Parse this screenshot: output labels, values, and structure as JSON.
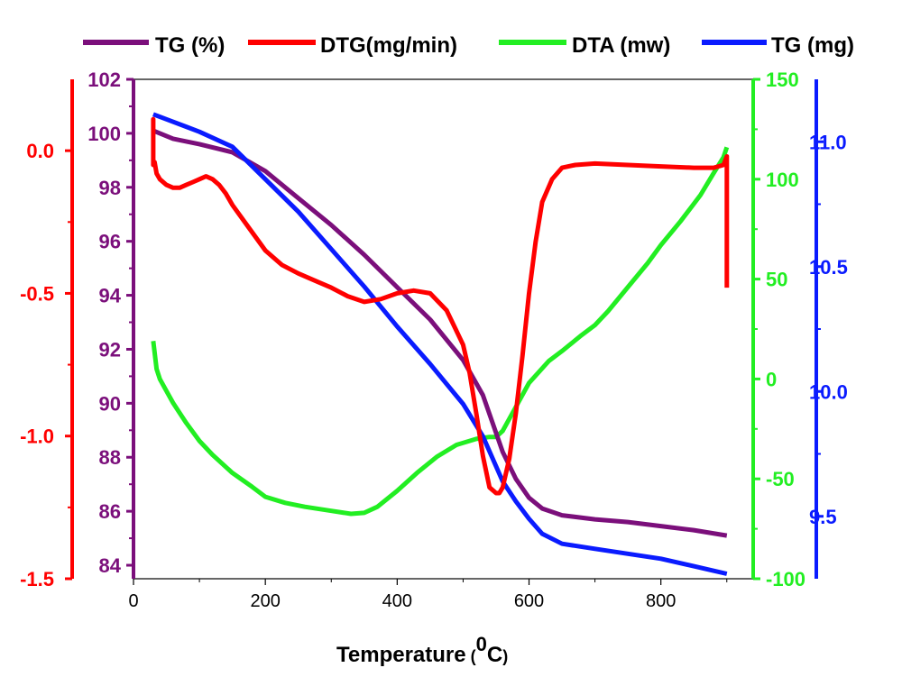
{
  "chart_data": {
    "type": "line",
    "xlabel": "Temperature",
    "xlabel_unit_sup": "0",
    "xlabel_unit_c": "C",
    "xlabel_paren_open": "(",
    "xlabel_paren_close": ")",
    "xlim": [
      0,
      940
    ],
    "xticks": [
      0,
      200,
      400,
      600,
      800
    ],
    "legend_position": "top",
    "axes": {
      "tg_pct": {
        "ylim": [
          83.5,
          102
        ],
        "ticks": [
          84,
          86,
          88,
          90,
          92,
          94,
          96,
          98,
          100,
          102
        ],
        "color": "#7b0f7b"
      },
      "dtg": {
        "ylim": [
          -1.5,
          0.25
        ],
        "ticks": [
          -1.5,
          -1.0,
          -0.5,
          0.0
        ],
        "tick_labels": [
          "-1.5",
          "-1.0",
          "-0.5",
          "0.0"
        ],
        "color": "#ff0000"
      },
      "dta": {
        "ylim": [
          -100,
          150
        ],
        "ticks": [
          -100,
          -50,
          0,
          50,
          100,
          150
        ],
        "color": "#22ee22"
      },
      "tg_mg": {
        "ylim": [
          9.25,
          11.25
        ],
        "ticks": [
          9.5,
          10.0,
          10.5,
          11.0
        ],
        "tick_labels": [
          "9.5",
          "10.0",
          "10.5",
          "11.0"
        ],
        "color": "#0a1bff"
      }
    },
    "series": [
      {
        "name": "TG (%)",
        "axis": "tg_pct",
        "color": "#7b0f7b",
        "x": [
          30,
          60,
          100,
          150,
          200,
          250,
          300,
          350,
          400,
          450,
          500,
          530,
          560,
          580,
          600,
          620,
          650,
          700,
          750,
          800,
          850,
          900
        ],
        "y": [
          100.1,
          99.8,
          99.6,
          99.3,
          98.6,
          97.6,
          96.6,
          95.5,
          94.3,
          93.1,
          91.6,
          90.3,
          88.2,
          87.2,
          86.5,
          86.1,
          85.85,
          85.7,
          85.6,
          85.45,
          85.3,
          85.1
        ]
      },
      {
        "name": "DTG(mg/min)",
        "axis": "dtg",
        "color": "#ff0000",
        "x": [
          30,
          30,
          30,
          32,
          35,
          40,
          50,
          60,
          70,
          80,
          90,
          100,
          110,
          120,
          130,
          140,
          150,
          175,
          200,
          225,
          250,
          280,
          300,
          325,
          350,
          375,
          400,
          425,
          450,
          475,
          500,
          510,
          520,
          530,
          540,
          550,
          555,
          560,
          570,
          580,
          590,
          600,
          610,
          620,
          635,
          650,
          670,
          700,
          750,
          800,
          850,
          880,
          895,
          900,
          900
        ],
        "y": [
          0.03,
          0.11,
          -0.05,
          -0.04,
          -0.08,
          -0.1,
          -0.12,
          -0.13,
          -0.13,
          -0.12,
          -0.11,
          -0.1,
          -0.09,
          -0.1,
          -0.12,
          -0.15,
          -0.19,
          -0.27,
          -0.35,
          -0.4,
          -0.43,
          -0.46,
          -0.48,
          -0.51,
          -0.53,
          -0.52,
          -0.5,
          -0.49,
          -0.5,
          -0.56,
          -0.68,
          -0.78,
          -0.92,
          -1.07,
          -1.18,
          -1.2,
          -1.2,
          -1.18,
          -1.08,
          -0.92,
          -0.72,
          -0.5,
          -0.32,
          -0.18,
          -0.1,
          -0.06,
          -0.05,
          -0.045,
          -0.05,
          -0.055,
          -0.06,
          -0.06,
          -0.05,
          -0.02,
          -0.48
        ]
      },
      {
        "name": "DTA (mw)",
        "axis": "dta",
        "color": "#22ee22",
        "x": [
          30,
          35,
          40,
          50,
          60,
          80,
          100,
          120,
          150,
          180,
          200,
          230,
          260,
          300,
          330,
          350,
          370,
          400,
          430,
          460,
          490,
          520,
          540,
          550,
          560,
          570,
          580,
          600,
          630,
          650,
          680,
          700,
          720,
          750,
          780,
          800,
          830,
          860,
          880,
          895,
          900
        ],
        "y": [
          19,
          5,
          0,
          -6,
          -12,
          -22,
          -31,
          -38,
          -47,
          -54,
          -59,
          -62,
          -64,
          -66,
          -67.5,
          -67,
          -64,
          -56,
          -47,
          -39,
          -33,
          -30,
          -29,
          -29,
          -26,
          -20,
          -14,
          -2,
          9,
          14,
          22,
          27,
          34,
          46,
          58,
          67,
          79,
          92,
          103,
          111,
          116
        ]
      },
      {
        "name": "TG (mg)",
        "axis": "tg_mg",
        "color": "#0a1bff",
        "x": [
          30,
          50,
          80,
          100,
          150,
          200,
          250,
          300,
          350,
          400,
          450,
          500,
          530,
          560,
          580,
          600,
          620,
          650,
          700,
          750,
          800,
          850,
          900
        ],
        "y": [
          11.11,
          11.09,
          11.06,
          11.04,
          10.98,
          10.85,
          10.72,
          10.57,
          10.42,
          10.26,
          10.11,
          9.95,
          9.82,
          9.64,
          9.56,
          9.49,
          9.43,
          9.39,
          9.37,
          9.35,
          9.33,
          9.3,
          9.27
        ]
      }
    ]
  }
}
